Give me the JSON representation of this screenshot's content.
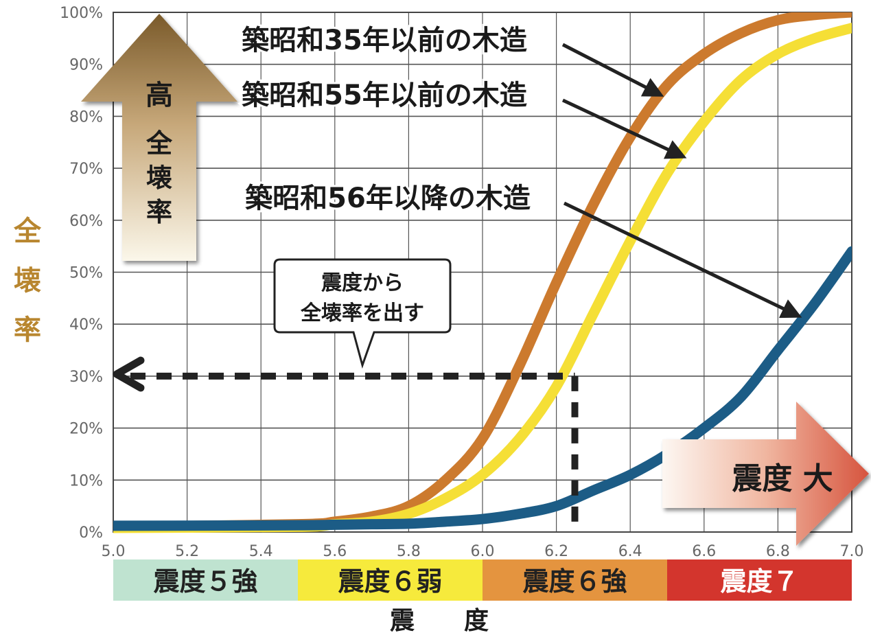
{
  "chart_data": {
    "type": "line",
    "xlabel": "震　　度",
    "ylabel": "全壊率",
    "xlim": [
      5.0,
      7.0
    ],
    "ylim": [
      0,
      100
    ],
    "x_ticks": [
      "5.0",
      "5.2",
      "5.4",
      "5.6",
      "5.8",
      "6.0",
      "6.2",
      "6.4",
      "6.6",
      "6.8",
      "7.0"
    ],
    "y_ticks": [
      "0%",
      "10%",
      "20%",
      "30%",
      "40%",
      "50%",
      "60%",
      "70%",
      "80%",
      "90%",
      "100%"
    ],
    "grid": true,
    "series": [
      {
        "name": "築昭和35年以前の木造",
        "color": "#cc7a2e",
        "x": [
          5.0,
          5.5,
          5.6,
          5.7,
          5.8,
          5.9,
          6.0,
          6.1,
          6.2,
          6.3,
          6.4,
          6.5,
          6.6,
          6.7,
          6.8,
          6.9,
          7.0
        ],
        "y": [
          1,
          1.5,
          2,
          3,
          5,
          10,
          18,
          32,
          48,
          63,
          76,
          86,
          92,
          96,
          98.5,
          99.5,
          100
        ]
      },
      {
        "name": "築昭和55年以前の木造",
        "color": "#f5df36",
        "x": [
          5.0,
          5.5,
          5.6,
          5.7,
          5.8,
          5.9,
          6.0,
          6.1,
          6.2,
          6.3,
          6.4,
          6.5,
          6.6,
          6.7,
          6.8,
          6.9,
          7.0
        ],
        "y": [
          0.8,
          1,
          1.5,
          2,
          3.5,
          6.5,
          11,
          18,
          28,
          42,
          56,
          69,
          79,
          87,
          92,
          95,
          97
        ]
      },
      {
        "name": "築昭和56年以降の木造",
        "color": "#1c5c86",
        "x": [
          5.0,
          5.5,
          5.6,
          5.7,
          5.8,
          5.9,
          6.0,
          6.1,
          6.2,
          6.3,
          6.4,
          6.5,
          6.6,
          6.7,
          6.8,
          6.9,
          7.0
        ],
        "y": [
          1.2,
          1.3,
          1.4,
          1.5,
          1.6,
          2,
          2.5,
          3.5,
          5,
          8,
          11,
          15,
          20,
          26,
          35,
          44,
          54
        ]
      }
    ],
    "reference": {
      "x": 6.25,
      "y": 30
    },
    "annotations": {
      "up_arrow": [
        "高",
        "全",
        "壊",
        "率"
      ],
      "right_arrow": "震度 大",
      "callout": [
        "震度から",
        "全壊率を出す"
      ]
    },
    "intensity_bands": [
      {
        "label": "震度５強",
        "from": 5.0,
        "to": 5.5,
        "bg": "#bfe3d0",
        "fg": "#222222"
      },
      {
        "label": "震度６弱",
        "from": 5.5,
        "to": 6.0,
        "bg": "#f6ea3c",
        "fg": "#222222"
      },
      {
        "label": "震度６強",
        "from": 6.0,
        "to": 6.5,
        "bg": "#e4943f",
        "fg": "#222222"
      },
      {
        "label": "震度７",
        "from": 6.5,
        "to": 7.0,
        "bg": "#d3352d",
        "fg": "#ffffff"
      }
    ]
  }
}
